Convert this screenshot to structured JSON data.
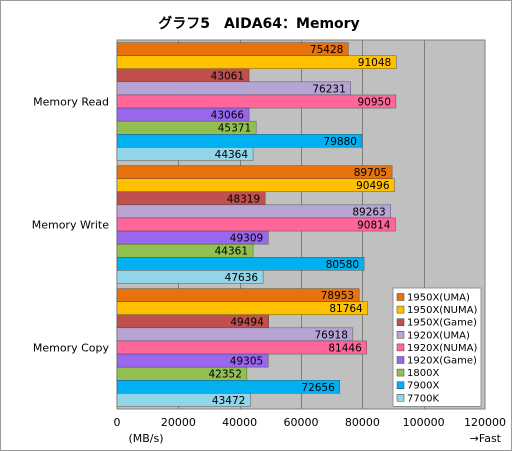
{
  "chart_data": {
    "type": "bar",
    "orientation": "horizontal",
    "title": "グラフ5　AIDA64：Memory",
    "categories": [
      "Memory Read",
      "Memory Write",
      "Memory Copy"
    ],
    "series": [
      {
        "name": "1950X(UMA)",
        "color": "#e8720c",
        "values": [
          75428,
          89705,
          78953
        ]
      },
      {
        "name": "1950X(NUMA)",
        "color": "#ffc000",
        "values": [
          91048,
          90496,
          81764
        ]
      },
      {
        "name": "1950X(Game)",
        "color": "#c0504d",
        "values": [
          43061,
          48319,
          49494
        ]
      },
      {
        "name": "1920X(UMA)",
        "color": "#b7a3d4",
        "values": [
          76231,
          89263,
          76918
        ]
      },
      {
        "name": "1920X(NUMA)",
        "color": "#ff6699",
        "values": [
          90950,
          90814,
          81446
        ]
      },
      {
        "name": "1920X(Game)",
        "color": "#9966ee",
        "values": [
          43066,
          49309,
          49305
        ]
      },
      {
        "name": "1800X",
        "color": "#92c050",
        "values": [
          45371,
          44361,
          42352
        ]
      },
      {
        "name": "7900X",
        "color": "#00b0f0",
        "values": [
          79880,
          80580,
          72656
        ]
      },
      {
        "name": "7700K",
        "color": "#92d4e8",
        "values": [
          44364,
          47636,
          43472
        ]
      }
    ],
    "xlim": [
      0,
      120000
    ],
    "xticks": [
      "0",
      "20000",
      "40000",
      "60000",
      "80000",
      "100000",
      "120000"
    ],
    "xlabel": "(MB/s)",
    "direction_note": "→Fast",
    "grid": true,
    "legend_position": "right",
    "plot_background": "#c0c0c0"
  }
}
